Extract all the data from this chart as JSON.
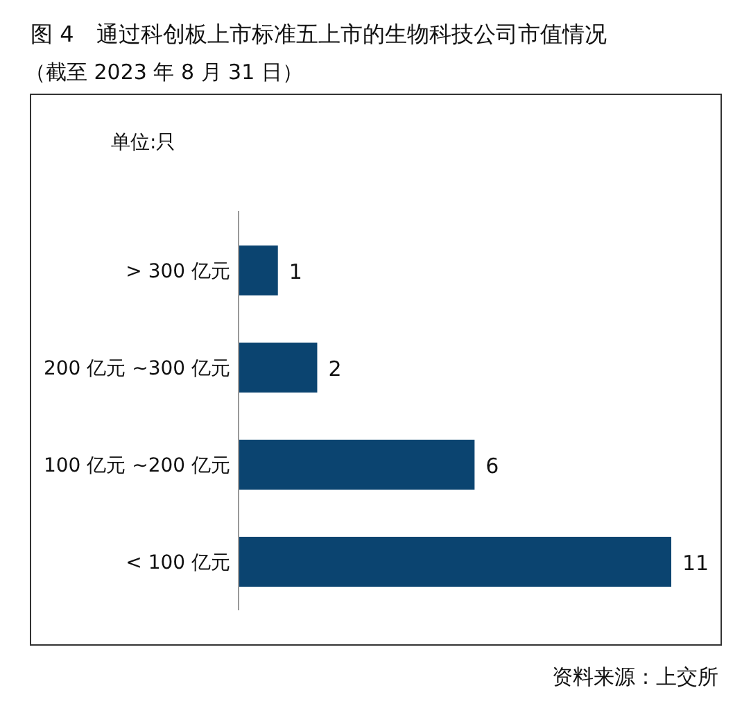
{
  "chart_data": {
    "type": "bar",
    "orientation": "horizontal",
    "title": "图 4　通过科创板上市标准五上市的生物科技公司市值情况",
    "subtitle": "（截至 2023 年 8 月 31 日）",
    "annotations": [
      "单位:只",
      "资料来源：上交所"
    ],
    "categories": [
      "> 300 亿元",
      "200 亿元 ~300 亿元",
      "100 亿元 ~200 亿元",
      "< 100 亿元"
    ],
    "values": [
      1,
      2,
      6,
      11
    ],
    "color": "#0b4470",
    "data_labels": true
  }
}
